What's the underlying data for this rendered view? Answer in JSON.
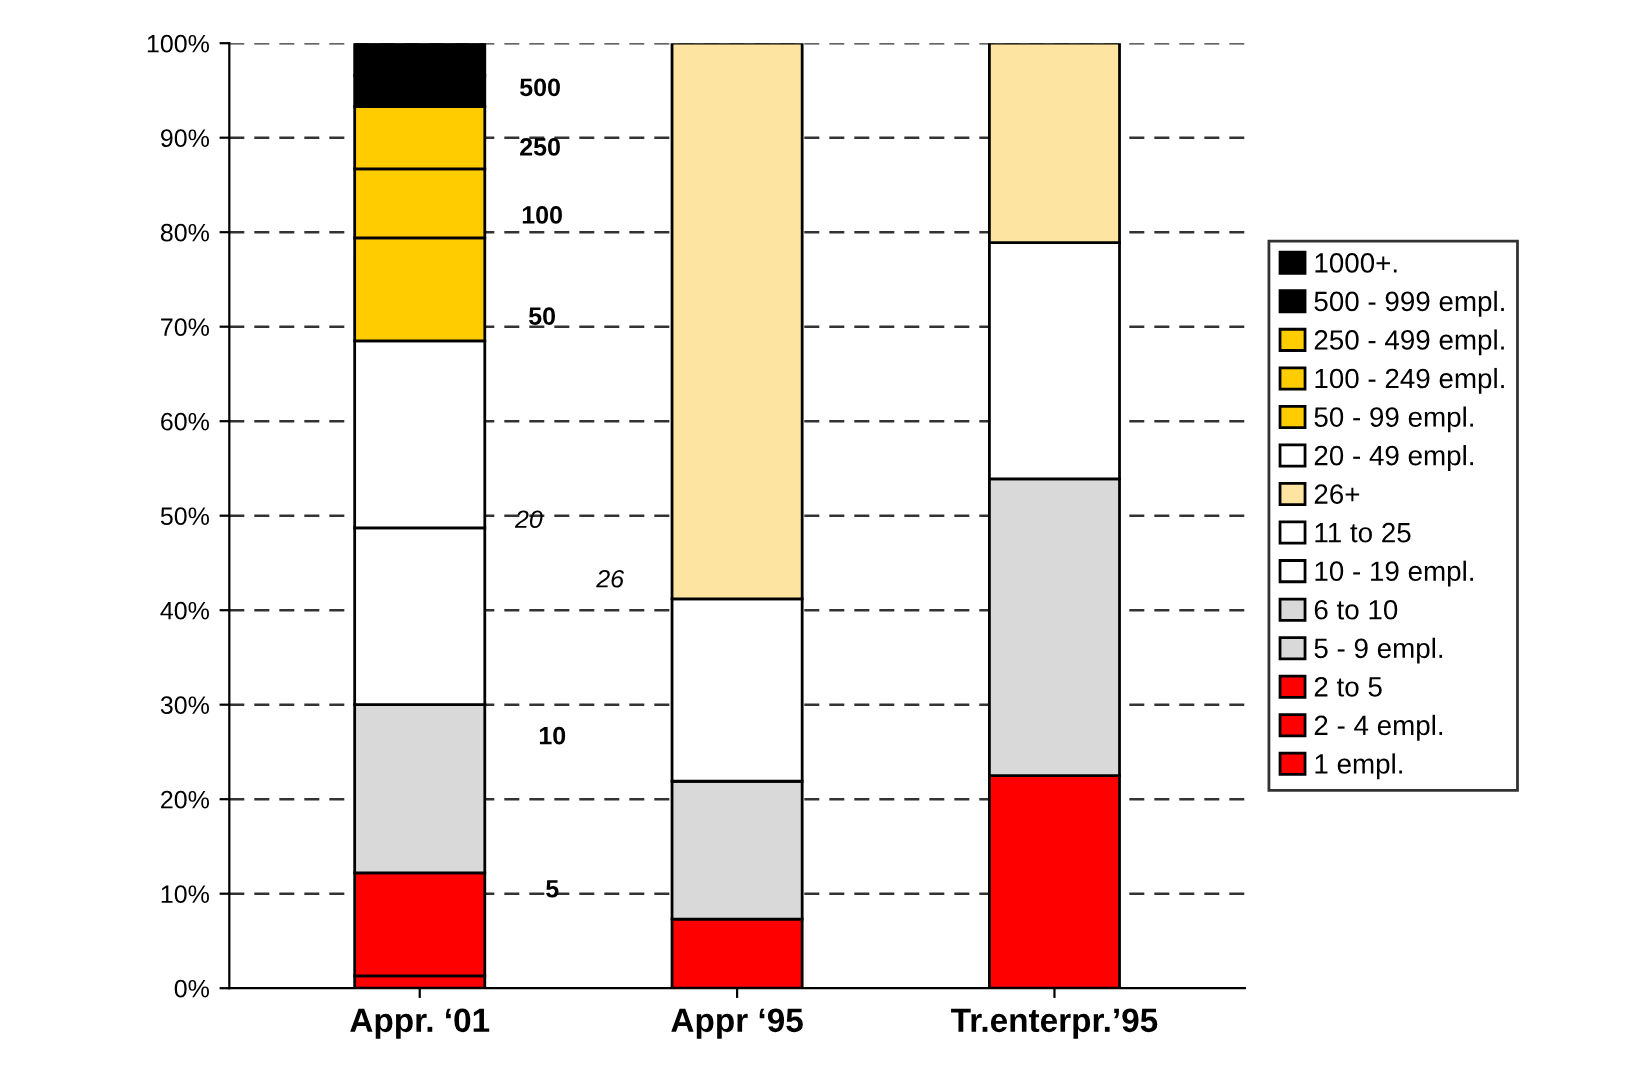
{
  "chart_data": {
    "type": "bar",
    "stacked": true,
    "categories": [
      "Appr. ‘01",
      "Appr ‘95",
      "Tr.enterpr.’95"
    ],
    "series": [
      {
        "name": "1 empl.",
        "color": "#ff0000",
        "values": [
          1.3,
          null,
          null
        ]
      },
      {
        "name": "2 - 4 empl.",
        "color": "#ff0000",
        "values": [
          10.9,
          null,
          null
        ]
      },
      {
        "name": "2 to 5",
        "color": "#ff0000",
        "values": [
          null,
          7.3,
          22.5
        ]
      },
      {
        "name": "5 - 9 empl.",
        "color": "#d9d9d9",
        "values": [
          17.8,
          null,
          null
        ]
      },
      {
        "name": "6 to 10",
        "color": "#d9d9d9",
        "values": [
          null,
          14.6,
          31.4
        ]
      },
      {
        "name": "10 - 19 empl.",
        "color": "#ffffff",
        "values": [
          18.7,
          null,
          null
        ]
      },
      {
        "name": "11 to 25",
        "color": "#ffffff",
        "values": [
          null,
          19.3,
          25.0
        ]
      },
      {
        "name": "26+",
        "color": "#fde4a0",
        "values": [
          null,
          58.8,
          21.1
        ]
      },
      {
        "name": "20 - 49 empl.",
        "color": "#ffffff",
        "values": [
          19.8,
          null,
          null
        ]
      },
      {
        "name": "50 - 99 empl.",
        "color": "#ffcc00",
        "values": [
          10.9,
          null,
          null
        ]
      },
      {
        "name": "100 - 249 empl.",
        "color": "#ffcc00",
        "values": [
          7.3,
          null,
          null
        ]
      },
      {
        "name": "250 - 499 empl.",
        "color": "#ffcc00",
        "values": [
          6.6,
          null,
          null
        ]
      },
      {
        "name": "500 - 999 empl.",
        "color": "#000000",
        "values": [
          3.3,
          null,
          null
        ]
      },
      {
        "name": "1000+.",
        "color": "#000000",
        "values": [
          3.4,
          null,
          null
        ]
      }
    ],
    "ylim": [
      0,
      100
    ],
    "yticks": [
      {
        "value": 0,
        "label": "0%"
      },
      {
        "value": 10,
        "label": "10%"
      },
      {
        "value": 20,
        "label": "20%"
      },
      {
        "value": 30,
        "label": "30%"
      },
      {
        "value": 40,
        "label": "40%"
      },
      {
        "value": 50,
        "label": "50%"
      },
      {
        "value": 60,
        "label": "60%"
      },
      {
        "value": 70,
        "label": "70%"
      },
      {
        "value": 80,
        "label": "80%"
      },
      {
        "value": 90,
        "label": "90%"
      },
      {
        "value": 100,
        "label": "100%"
      }
    ],
    "grid": "y",
    "legend": "right",
    "annotations": [
      "500",
      "250",
      "100",
      "50",
      "20",
      "26",
      "10",
      "5"
    ]
  }
}
